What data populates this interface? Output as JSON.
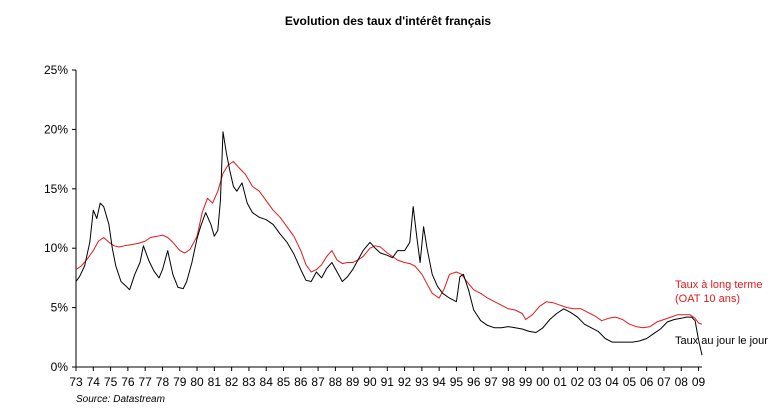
{
  "chart_data": {
    "type": "line",
    "title": "Evolution des taux d'intérêt français",
    "source": "Source: Datastream",
    "ylim": [
      0,
      25
    ],
    "yticks": [
      0,
      5,
      10,
      15,
      20,
      25
    ],
    "ytick_labels": [
      "0%",
      "5%",
      "10%",
      "15%",
      "20%",
      "25%"
    ],
    "xlim": [
      1973,
      2009.2
    ],
    "xtick_labels": [
      "73",
      "74",
      "75",
      "76",
      "77",
      "78",
      "79",
      "80",
      "81",
      "82",
      "83",
      "84",
      "85",
      "86",
      "87",
      "88",
      "89",
      "90",
      "91",
      "92",
      "93",
      "94",
      "95",
      "96",
      "97",
      "98",
      "99",
      "00",
      "01",
      "02",
      "03",
      "04",
      "05",
      "06",
      "07",
      "08",
      "09"
    ],
    "grid": false,
    "series": [
      {
        "name": "Taux à long terme\n(OAT 10 ans)",
        "label_line1": "Taux à long terme",
        "label_line2": "(OAT 10 ans)",
        "color": "#e31a1c",
        "x": [
          1973.0,
          1973.3,
          1973.6,
          1974.0,
          1974.3,
          1974.6,
          1974.9,
          1975.2,
          1975.5,
          1975.8,
          1976.2,
          1976.6,
          1977.0,
          1977.3,
          1977.7,
          1978.0,
          1978.3,
          1978.6,
          1979.0,
          1979.3,
          1979.6,
          1980.0,
          1980.3,
          1980.6,
          1980.9,
          1981.2,
          1981.5,
          1981.8,
          1982.1,
          1982.4,
          1982.8,
          1983.2,
          1983.6,
          1984.0,
          1984.4,
          1984.8,
          1985.2,
          1985.6,
          1986.0,
          1986.3,
          1986.6,
          1986.9,
          1987.2,
          1987.5,
          1987.8,
          1988.1,
          1988.4,
          1988.7,
          1989.0,
          1989.3,
          1989.6,
          1990.0,
          1990.3,
          1990.6,
          1991.0,
          1991.3,
          1991.6,
          1992.0,
          1992.3,
          1992.6,
          1993.0,
          1993.3,
          1993.6,
          1994.0,
          1994.3,
          1994.6,
          1995.0,
          1995.3,
          1995.6,
          1996.0,
          1996.4,
          1996.8,
          1997.2,
          1997.6,
          1998.0,
          1998.4,
          1998.8,
          1999.0,
          1999.4,
          1999.8,
          2000.2,
          2000.6,
          2001.0,
          2001.4,
          2001.8,
          2002.2,
          2002.6,
          2003.0,
          2003.4,
          2003.8,
          2004.2,
          2004.6,
          2005.0,
          2005.4,
          2005.8,
          2006.2,
          2006.6,
          2007.0,
          2007.4,
          2007.8,
          2008.2,
          2008.5,
          2008.8,
          2009.0,
          2009.2
        ],
        "values": [
          8.2,
          8.5,
          9.0,
          9.8,
          10.6,
          10.9,
          10.5,
          10.2,
          10.1,
          10.2,
          10.3,
          10.4,
          10.6,
          10.9,
          11.0,
          11.1,
          10.9,
          10.5,
          9.8,
          9.6,
          9.9,
          11.0,
          13.0,
          14.2,
          13.8,
          14.8,
          16.3,
          17.0,
          17.3,
          16.8,
          16.2,
          15.2,
          14.8,
          14.0,
          13.2,
          12.6,
          11.8,
          11.0,
          9.8,
          8.6,
          8.0,
          8.2,
          8.6,
          9.3,
          9.8,
          9.0,
          8.7,
          8.8,
          8.8,
          9.0,
          9.3,
          10.0,
          10.2,
          10.1,
          9.6,
          9.3,
          9.0,
          8.8,
          8.7,
          8.5,
          7.8,
          7.0,
          6.2,
          5.8,
          6.6,
          7.8,
          8.0,
          7.8,
          7.2,
          6.5,
          6.2,
          5.8,
          5.5,
          5.2,
          4.9,
          4.8,
          4.5,
          4.0,
          4.4,
          5.1,
          5.5,
          5.4,
          5.2,
          5.0,
          4.9,
          4.9,
          4.6,
          4.3,
          3.9,
          4.1,
          4.2,
          4.0,
          3.6,
          3.4,
          3.3,
          3.4,
          3.8,
          4.0,
          4.2,
          4.4,
          4.4,
          4.4,
          4.1,
          3.7,
          3.6
        ]
      },
      {
        "name": "Taux au jour le jour",
        "color": "#000000",
        "x": [
          1973.0,
          1973.2,
          1973.5,
          1973.8,
          1974.0,
          1974.2,
          1974.4,
          1974.6,
          1974.9,
          1975.1,
          1975.3,
          1975.6,
          1975.9,
          1976.1,
          1976.4,
          1976.7,
          1976.9,
          1977.2,
          1977.5,
          1977.8,
          1978.0,
          1978.3,
          1978.6,
          1978.9,
          1979.2,
          1979.4,
          1979.7,
          1980.0,
          1980.2,
          1980.5,
          1980.8,
          1981.0,
          1981.2,
          1981.35,
          1981.5,
          1981.7,
          1981.9,
          1982.1,
          1982.3,
          1982.6,
          1982.9,
          1983.2,
          1983.6,
          1984.0,
          1984.4,
          1984.8,
          1985.2,
          1985.6,
          1986.0,
          1986.3,
          1986.6,
          1986.9,
          1987.2,
          1987.5,
          1987.8,
          1988.1,
          1988.4,
          1988.7,
          1989.0,
          1989.3,
          1989.6,
          1990.0,
          1990.3,
          1990.6,
          1991.0,
          1991.3,
          1991.6,
          1992.0,
          1992.3,
          1992.5,
          1992.7,
          1992.9,
          1993.1,
          1993.3,
          1993.6,
          1993.9,
          1994.2,
          1994.6,
          1995.0,
          1995.2,
          1995.4,
          1995.7,
          1996.0,
          1996.4,
          1996.8,
          1997.2,
          1997.6,
          1998.0,
          1998.4,
          1998.8,
          1999.2,
          1999.6,
          2000.0,
          2000.4,
          2000.8,
          2001.2,
          2001.6,
          2002.0,
          2002.4,
          2002.8,
          2003.2,
          2003.6,
          2004.0,
          2004.4,
          2004.8,
          2005.2,
          2005.6,
          2006.0,
          2006.4,
          2006.8,
          2007.2,
          2007.6,
          2008.0,
          2008.3,
          2008.6,
          2008.8,
          2009.0,
          2009.2
        ],
        "values": [
          7.2,
          7.6,
          8.5,
          10.5,
          13.2,
          12.5,
          13.8,
          13.5,
          12.0,
          10.0,
          8.5,
          7.2,
          6.8,
          6.5,
          7.8,
          8.8,
          10.2,
          9.0,
          8.1,
          7.5,
          8.2,
          9.8,
          7.8,
          6.7,
          6.6,
          7.2,
          8.8,
          10.8,
          11.8,
          13.0,
          12.0,
          11.0,
          11.5,
          14.0,
          19.8,
          18.0,
          16.5,
          15.2,
          14.8,
          15.5,
          13.8,
          13.0,
          12.6,
          12.4,
          12.0,
          11.2,
          10.5,
          9.5,
          8.2,
          7.3,
          7.2,
          8.0,
          7.5,
          8.3,
          8.8,
          8.0,
          7.2,
          7.6,
          8.2,
          9.0,
          9.8,
          10.5,
          10.0,
          9.6,
          9.4,
          9.2,
          9.8,
          9.8,
          10.5,
          13.5,
          11.0,
          8.8,
          11.8,
          10.0,
          7.8,
          6.8,
          6.2,
          5.8,
          5.5,
          7.6,
          7.8,
          6.5,
          4.8,
          3.9,
          3.5,
          3.3,
          3.3,
          3.4,
          3.3,
          3.2,
          3.0,
          2.9,
          3.3,
          4.0,
          4.5,
          4.9,
          4.6,
          4.2,
          3.6,
          3.3,
          3.0,
          2.4,
          2.1,
          2.1,
          2.1,
          2.1,
          2.2,
          2.4,
          2.8,
          3.2,
          3.8,
          4.0,
          4.1,
          4.2,
          4.2,
          3.9,
          2.3,
          1.0
        ]
      }
    ]
  }
}
